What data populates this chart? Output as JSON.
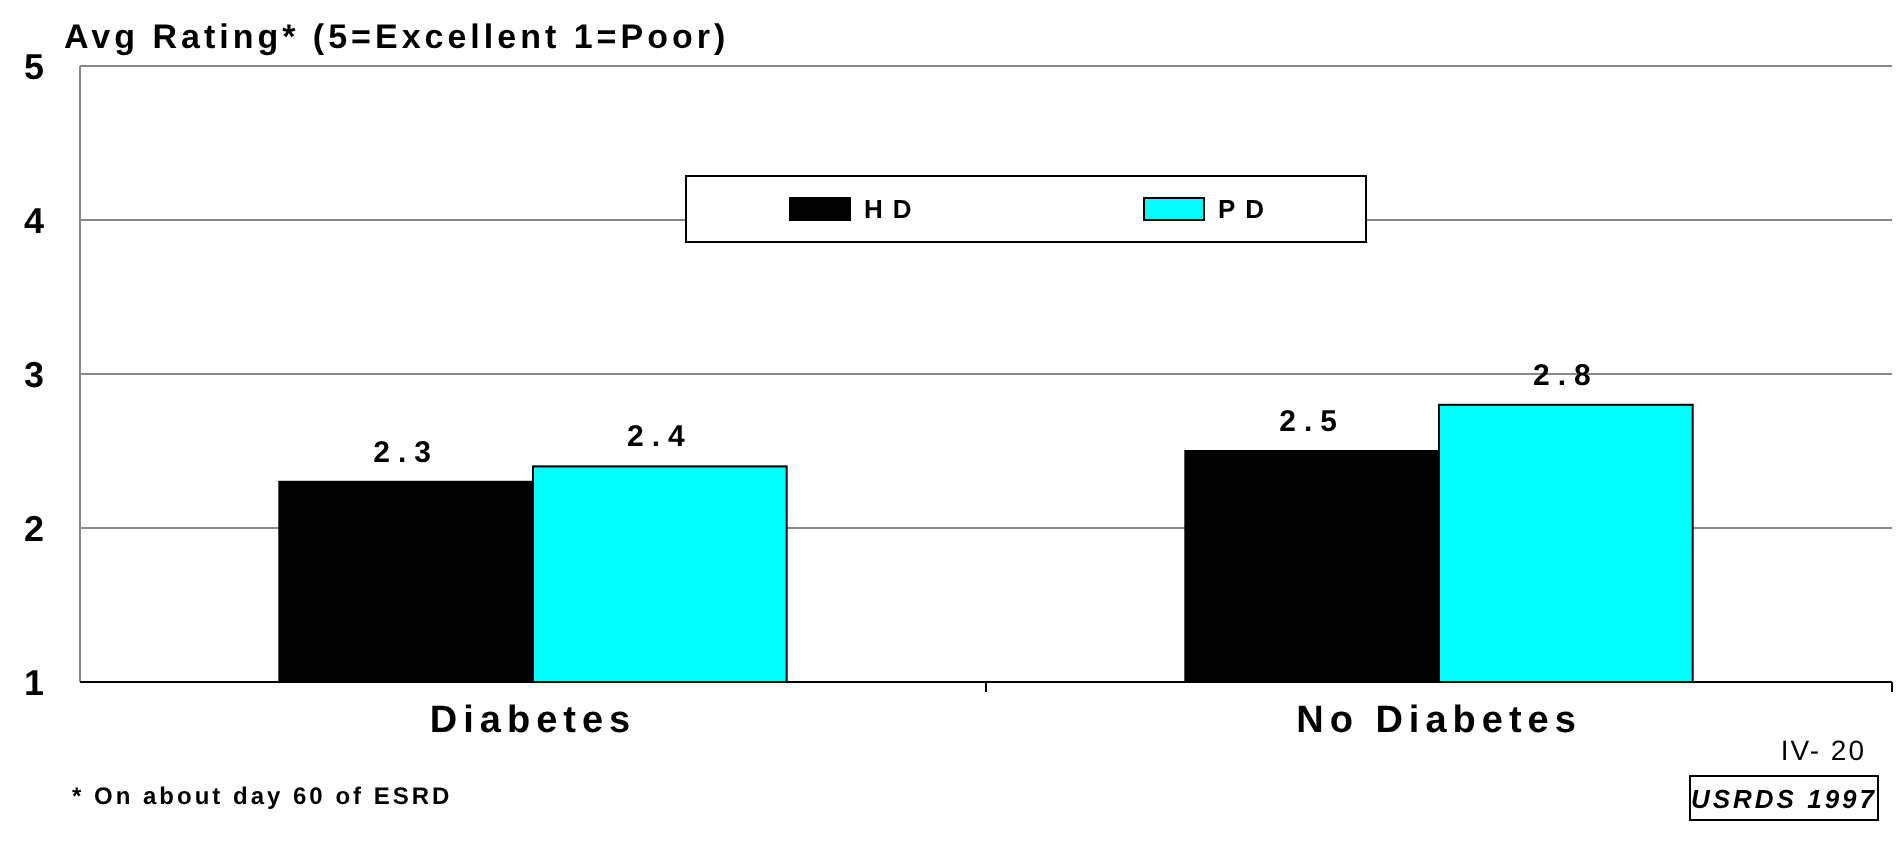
{
  "chart_data": {
    "type": "bar",
    "title": "Avg Rating* (5=Excellent 1=Poor)",
    "categories": [
      "Diabetes",
      "No Diabetes"
    ],
    "series": [
      {
        "name": "HD",
        "color": "#000000",
        "values": [
          2.3,
          2.5
        ]
      },
      {
        "name": "PD",
        "color": "#00ffff",
        "values": [
          2.4,
          2.8
        ]
      }
    ],
    "ylim": [
      1,
      5
    ],
    "yticks": [
      1,
      2,
      3,
      4,
      5
    ],
    "grid": "y",
    "legend": "top",
    "data_labels": true,
    "annotations": [
      "* On about day 60 of ESRD",
      "IV- 20",
      "USRDS 1997"
    ]
  }
}
